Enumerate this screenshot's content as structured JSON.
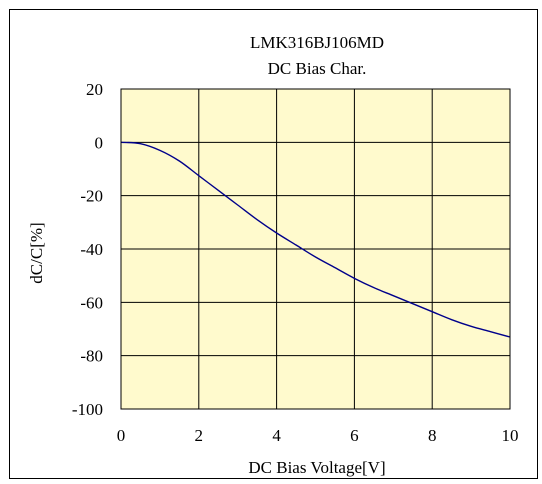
{
  "chart_data": {
    "type": "line",
    "title": "LMK316BJ106MD",
    "subtitle": "DC Bias Char.",
    "xlabel": "DC Bias Voltage[V]",
    "ylabel": "dC/C[%]",
    "xlim": [
      0,
      10
    ],
    "ylim": [
      -100,
      20
    ],
    "xticks": [
      0,
      2,
      4,
      6,
      8,
      10
    ],
    "yticks": [
      20,
      0,
      -20,
      -40,
      -60,
      -80,
      -100
    ],
    "grid": true,
    "plot_background": "#fffacd",
    "line_color": "#00008b",
    "series": [
      {
        "x": [
          0,
          0.5,
          1,
          1.5,
          2,
          2.5,
          3,
          3.5,
          4,
          4.5,
          5,
          5.5,
          6,
          6.5,
          7,
          7.5,
          8,
          8.5,
          9,
          9.5,
          10
        ],
        "values": [
          0,
          -0.5,
          -3,
          -7,
          -12.5,
          -18,
          -23.5,
          -29,
          -34,
          -38.5,
          -43,
          -47,
          -51,
          -54.5,
          -57.5,
          -60.5,
          -63.5,
          -66.5,
          -69,
          -71,
          -73
        ]
      }
    ]
  }
}
